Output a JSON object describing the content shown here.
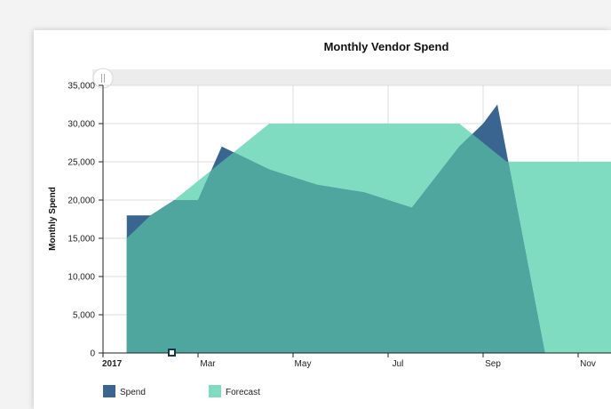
{
  "chart_data": {
    "type": "area",
    "title": "Monthly Vendor Spend",
    "ylabel": "Monthly Spend",
    "xlabel": "",
    "ylim": [
      0,
      35000
    ],
    "yticks": [
      0,
      5000,
      10000,
      15000,
      20000,
      25000,
      30000,
      35000
    ],
    "ytick_labels": [
      "0",
      "5,000",
      "10,000",
      "15,000",
      "20,000",
      "25,000",
      "30,000",
      "35,000"
    ],
    "xlim": [
      0,
      11
    ],
    "xticks": [
      {
        "x": 0,
        "label": "2017",
        "bold": true
      },
      {
        "x": 2,
        "label": "Mar",
        "bold": false
      },
      {
        "x": 4,
        "label": "May",
        "bold": false
      },
      {
        "x": 6,
        "label": "Jul",
        "bold": false
      },
      {
        "x": 8,
        "label": "Sep",
        "bold": false
      },
      {
        "x": 10,
        "label": "Nov",
        "bold": false
      }
    ],
    "grid": true,
    "legend_position": "bottom-left",
    "series": [
      {
        "name": "Forecast",
        "color": "#7fdcc0",
        "points": [
          [
            0.5,
            15000
          ],
          [
            1.0,
            18000
          ],
          [
            1.5,
            20000
          ],
          [
            3.5,
            30000
          ],
          [
            7.5,
            30000
          ],
          [
            8.5,
            25000
          ],
          [
            11.0,
            25000
          ]
        ]
      },
      {
        "name": "Spend",
        "color": "#3b6591",
        "points": [
          [
            0.5,
            18000
          ],
          [
            1.0,
            18000
          ],
          [
            1.5,
            20000
          ],
          [
            2.0,
            20000
          ],
          [
            2.5,
            27000
          ],
          [
            3.5,
            24000
          ],
          [
            4.0,
            23000
          ],
          [
            4.5,
            22000
          ],
          [
            5.5,
            21000
          ],
          [
            6.5,
            19000
          ],
          [
            7.5,
            27000
          ],
          [
            8.0,
            30000
          ],
          [
            8.3,
            32500
          ],
          [
            9.3,
            0
          ]
        ]
      }
    ]
  },
  "legend": {
    "items": [
      {
        "label": "Spend",
        "color": "#3b6591"
      },
      {
        "label": "Forecast",
        "color": "#7fdcc0"
      }
    ]
  },
  "overlap_color": "#4ea69f"
}
